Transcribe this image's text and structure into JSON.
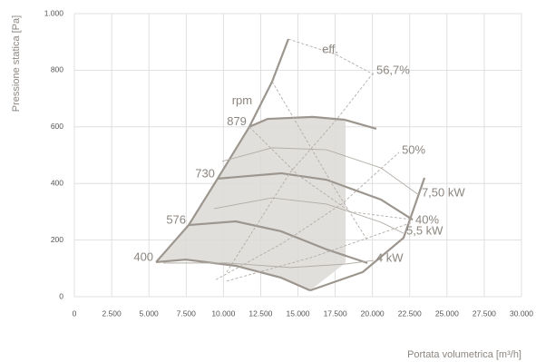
{
  "chart_data": {
    "type": "line",
    "ylabel": "Pressione statica [Pa]",
    "xlabel": "Portata volumetrica [m³/h]",
    "rpm_label": "rpm",
    "eff_label": "eff.",
    "xlim": [
      0,
      30000
    ],
    "ylim": [
      0,
      1000
    ],
    "xticks": [
      0,
      {
        "value": 2500,
        "label": "2.500"
      },
      {
        "value": 5000,
        "label": "5.000"
      },
      {
        "value": 7500,
        "label": "7.500"
      },
      {
        "value": 10000,
        "label": "10.000"
      },
      {
        "value": 12500,
        "label": "12.500"
      },
      {
        "value": 15000,
        "label": "15.000"
      },
      {
        "value": 17500,
        "label": "17.500"
      },
      {
        "value": 20000,
        "label": "20.000"
      },
      {
        "value": 22500,
        "label": "22.500"
      },
      {
        "value": 25000,
        "label": "25.000"
      },
      {
        "value": 27500,
        "label": "27.500"
      },
      {
        "value": 30000,
        "label": "30.000"
      }
    ],
    "yticks": [
      0,
      200,
      400,
      600,
      800,
      {
        "value": 1000,
        "label": "1.000"
      }
    ],
    "grid": true,
    "region": {
      "color": "#dedbd7",
      "x": [
        5480,
        7670,
        9610,
        11740,
        12960,
        16000,
        18200,
        18200,
        15820,
        13870,
        10830,
        7480
      ],
      "values": [
        122,
        253,
        417,
        600,
        628,
        635,
        625,
        120,
        22,
        67,
        109,
        131
      ]
    },
    "series": [
      {
        "name": "400",
        "style": "thick",
        "color": "#9c968f",
        "x": [
          5480,
          7480,
          10830,
          13870,
          15820
        ],
        "values": [
          122,
          131,
          109,
          67,
          22
        ]
      },
      {
        "name": "576",
        "style": "thick",
        "color": "#9c968f",
        "x": [
          7670,
          10830,
          13870,
          16920,
          19660
        ],
        "values": [
          253,
          266,
          231,
          167,
          119
        ]
      },
      {
        "name": "730",
        "style": "thick",
        "color": "#9c968f",
        "x": [
          9610,
          13870,
          16920,
          20570,
          22700
        ],
        "values": [
          417,
          436,
          413,
          343,
          272
        ]
      },
      {
        "name": "879",
        "style": "thick",
        "color": "#9c968f",
        "x": [
          11740,
          12960,
          16000,
          18130,
          20260
        ],
        "values": [
          600,
          628,
          635,
          625,
          593
        ]
      },
      {
        "style": "thick",
        "color": "#9c968f",
        "x": [
          5480,
          7670,
          9610,
          11740,
          13270,
          14360
        ],
        "values": [
          122,
          253,
          417,
          600,
          760,
          910
        ]
      },
      {
        "style": "thick",
        "color": "#9c968f",
        "x": [
          15820,
          19350,
          22090,
          23490
        ],
        "values": [
          22,
          87,
          208,
          420
        ]
      },
      {
        "name": "7,50 kW",
        "style": "thin",
        "color": "#b3ada7",
        "x": [
          9920,
          13270,
          16920,
          20570,
          23120
        ],
        "values": [
          478,
          526,
          519,
          455,
          359
        ]
      },
      {
        "name": "5,5 kW",
        "style": "thin",
        "color": "#b3ada7",
        "x": [
          9370,
          13270,
          16920,
          20570,
          22090
        ],
        "values": [
          311,
          349,
          327,
          263,
          224
        ]
      },
      {
        "name": "4 kW",
        "style": "thin",
        "color": "#b3ada7",
        "x": [
          5960,
          10220,
          14480,
          18130,
          20080
        ],
        "values": [
          119,
          119,
          103,
          115,
          128
        ]
      },
      {
        "name": "56,7%",
        "style": "dashed",
        "color": "#b3ada7",
        "x": [
          10220,
          14480,
          17500,
          20080
        ],
        "values": [
          87,
          439,
          620,
          792
        ]
      },
      {
        "name": "50%",
        "style": "dashed",
        "color": "#b3ada7",
        "x": [
          9500,
          14000,
          18000,
          21790
        ],
        "values": [
          60,
          190,
          330,
          510
        ]
      },
      {
        "name": "40%",
        "style": "dashed",
        "color": "#b3ada7",
        "x": [
          10220,
          16000,
          22700
        ],
        "values": [
          55,
          140,
          263
        ]
      },
      {
        "style": "dashed",
        "color": "#b3ada7",
        "x": [
          14360,
          17530,
          20080
        ],
        "values": [
          910,
          856,
          785
        ]
      },
      {
        "style": "dashed",
        "color": "#b3ada7",
        "x": [
          13270,
          15500,
          17500,
          19660
        ],
        "values": [
          760,
          560,
          380,
          199
        ]
      },
      {
        "style": "dashed",
        "color": "#b3ada7",
        "x": [
          11740,
          15000,
          18500,
          22700
        ],
        "values": [
          600,
          430,
          300,
          272
        ]
      }
    ]
  }
}
